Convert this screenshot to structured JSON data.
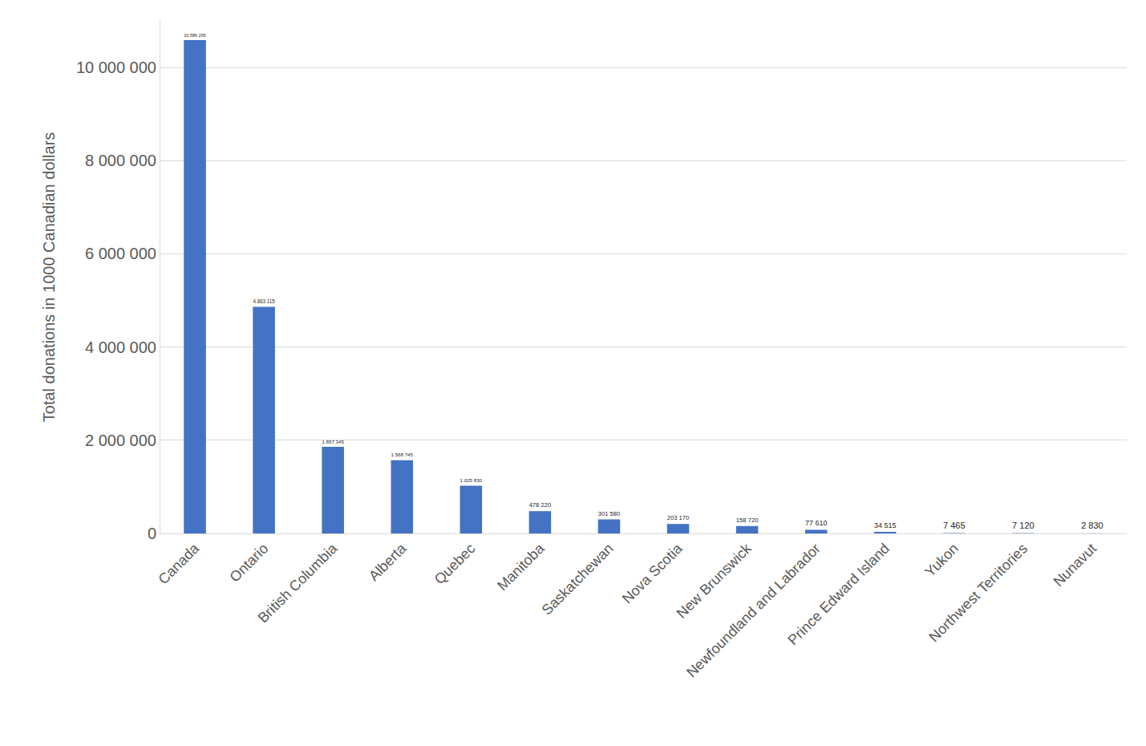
{
  "chart_data": {
    "type": "bar",
    "y_label": "Total donations in 1000 Canadian dollars",
    "categories": [
      "Canada",
      "Ontario",
      "British Columbia",
      "Alberta",
      "Quebec",
      "Manitoba",
      "Saskatchewan",
      "Nova Scotia",
      "New Brunswick",
      "Newfoundland and Labrador",
      "Prince Edward Island",
      "Yukon",
      "Northwest Territories",
      "Nunavut"
    ],
    "values": [
      10586265,
      4863115,
      1857345,
      1568745,
      1025830,
      478220,
      301580,
      203170,
      158720,
      77610,
      34515,
      7465,
      7120,
      2830
    ],
    "value_labels": [
      "10 586 265",
      "4 863 115",
      "1 857 345",
      "1 568 745",
      "1 025 830",
      "478 220",
      "301 580",
      "203 170",
      "158 720",
      "77 610",
      "34 515",
      "7 465",
      "7 120",
      "2 830"
    ],
    "color": "#4472c4",
    "ylim": [
      0,
      11000000
    ],
    "yticks": [
      0,
      {
        "value": 2000000,
        "label": "2 000 000"
      },
      {
        "value": 4000000,
        "label": "4 000 000"
      },
      {
        "value": 6000000,
        "label": "6 000 000"
      },
      {
        "value": 8000000,
        "label": "8 000 000"
      },
      {
        "value": 10000000,
        "label": "10 000 000"
      }
    ],
    "grid": true,
    "data_labels": true
  }
}
